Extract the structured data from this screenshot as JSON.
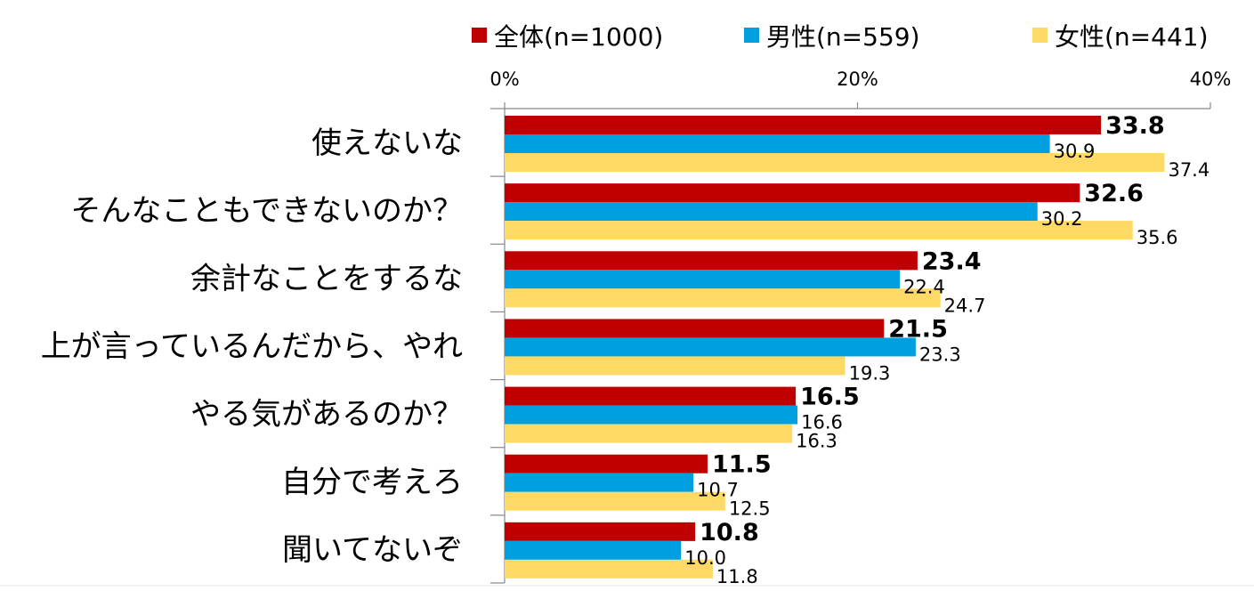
{
  "chart_data": {
    "type": "bar",
    "orientation": "horizontal",
    "categories": [
      "使えないな",
      "そんなこともできないのか？",
      "余計なことをするな",
      "上が言っているんだから、やれ",
      "やる気があるのか？",
      "自分で考えろ",
      "聞いてないぞ"
    ],
    "series": [
      {
        "name": "全体(n=1000)",
        "color": "#c00000",
        "values": [
          33.8,
          32.6,
          23.4,
          21.5,
          16.5,
          11.5,
          10.8
        ]
      },
      {
        "name": "男性(n=559)",
        "color": "#00a0e0",
        "values": [
          30.9,
          30.2,
          22.4,
          23.3,
          16.6,
          10.7,
          10.0
        ]
      },
      {
        "name": "女性(n=441)",
        "color": "#ffd966",
        "values": [
          37.4,
          35.6,
          24.7,
          19.3,
          16.3,
          12.5,
          11.8
        ]
      }
    ],
    "xlim": [
      0,
      40
    ],
    "ticks": [
      0,
      20,
      40
    ],
    "tick_labels": [
      "0%",
      "20%",
      "40%"
    ],
    "legend_position": "top",
    "axis_position": "top",
    "value_decimals": 1
  }
}
